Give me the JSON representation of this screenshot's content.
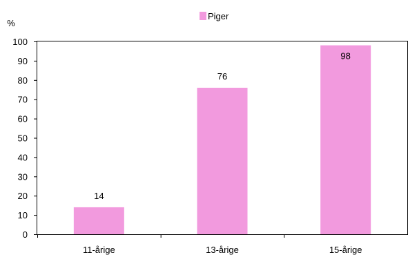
{
  "chart_data": {
    "type": "bar",
    "categories": [
      "11-årige",
      "13-årige",
      "15-årige"
    ],
    "series": [
      {
        "name": "Piger",
        "values": [
          14,
          76,
          98
        ]
      }
    ],
    "data_labels": [
      "14",
      "76",
      "98"
    ],
    "ylabel": "%",
    "ylim": [
      0,
      100
    ],
    "yticks": [
      0,
      10,
      20,
      30,
      40,
      50,
      60,
      70,
      80,
      90,
      100
    ],
    "grid": false,
    "legend_position": "top-center",
    "bar_color": "#f29ade"
  }
}
